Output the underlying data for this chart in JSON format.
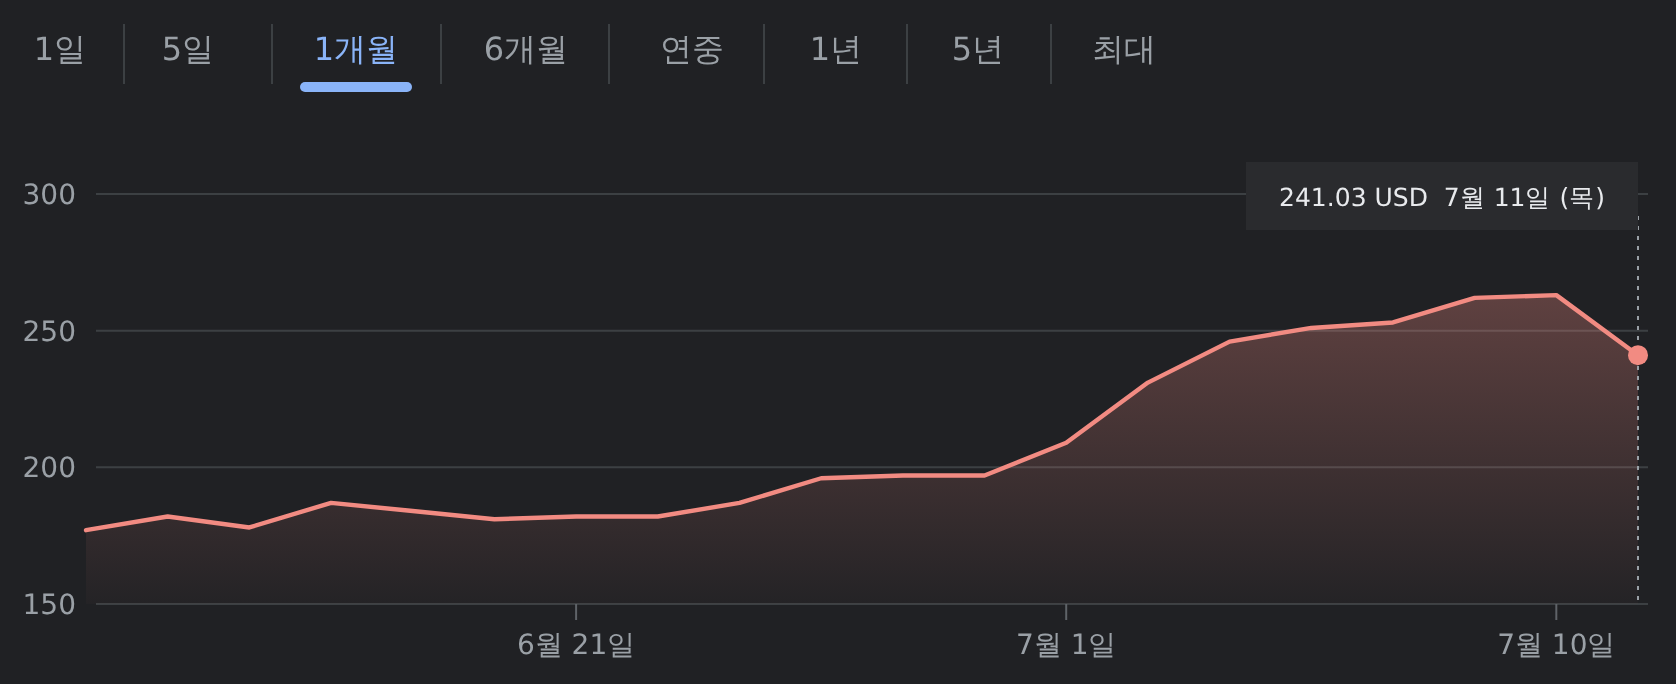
{
  "chart_data": {
    "type": "area",
    "categories": [
      null,
      null,
      null,
      null,
      null,
      null,
      "6월 21일",
      null,
      null,
      null,
      null,
      null,
      "7월 1일",
      null,
      null,
      null,
      null,
      null,
      "7월 10일",
      null
    ],
    "series": [
      {
        "color": "#f28b82",
        "values": [
          177,
          182,
          178,
          187,
          184,
          181,
          182,
          182,
          187,
          196,
          197,
          197,
          209,
          231,
          246,
          251,
          253,
          262,
          263,
          241.03
        ]
      }
    ],
    "ylim": [
      150,
      300
    ],
    "yticks": [
      150,
      200,
      250,
      300
    ],
    "grid": "y",
    "annotations": [
      "1일",
      "5일",
      "1개월",
      "6개월",
      "연중",
      "1년",
      "5년",
      "최대",
      "241.03 USD  7월 11일 (목)"
    ]
  }
}
